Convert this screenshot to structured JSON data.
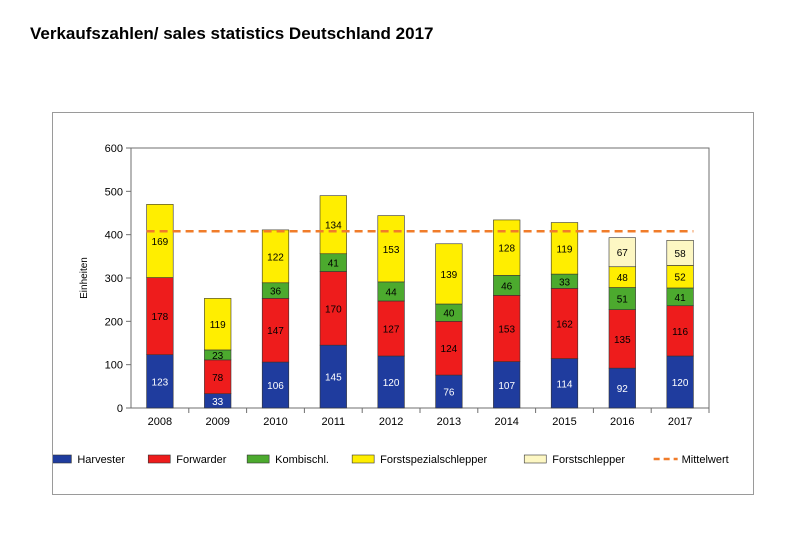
{
  "page": {
    "title": "Verkaufszahlen/ sales statistics Deutschland 2017"
  },
  "chart_data": {
    "type": "bar",
    "stacked": true,
    "ylabel": "Einheiten",
    "xlabel": "",
    "ylim": [
      0,
      600
    ],
    "y_ticks": [
      0,
      100,
      200,
      300,
      400,
      500,
      600
    ],
    "grid": false,
    "legend_position": "bottom",
    "categories": [
      "2008",
      "2009",
      "2010",
      "2011",
      "2012",
      "2013",
      "2014",
      "2015",
      "2016",
      "2017"
    ],
    "series": [
      {
        "name": "Harvester",
        "color": "#1f3c9e",
        "values": [
          123,
          33,
          106,
          145,
          120,
          76,
          107,
          114,
          92,
          120
        ]
      },
      {
        "name": "Forwarder",
        "color": "#ee1c1c",
        "values": [
          178,
          78,
          147,
          170,
          127,
          124,
          153,
          162,
          135,
          116
        ]
      },
      {
        "name": "Kombischl.",
        "color": "#4caa2e",
        "values": [
          null,
          23,
          36,
          41,
          44,
          40,
          46,
          33,
          51,
          41
        ]
      },
      {
        "name": "Forstspezialschlepper",
        "color": "#ffee00",
        "values": [
          169,
          119,
          122,
          134,
          153,
          139,
          128,
          119,
          48,
          52
        ]
      },
      {
        "name": "Forstschlepper",
        "color": "#fdf7c3",
        "values": [
          null,
          null,
          null,
          null,
          null,
          null,
          null,
          null,
          67,
          58
        ]
      }
    ],
    "mean_line": {
      "name": "Mittelwert",
      "value": 408,
      "color": "#f07c2a"
    }
  }
}
